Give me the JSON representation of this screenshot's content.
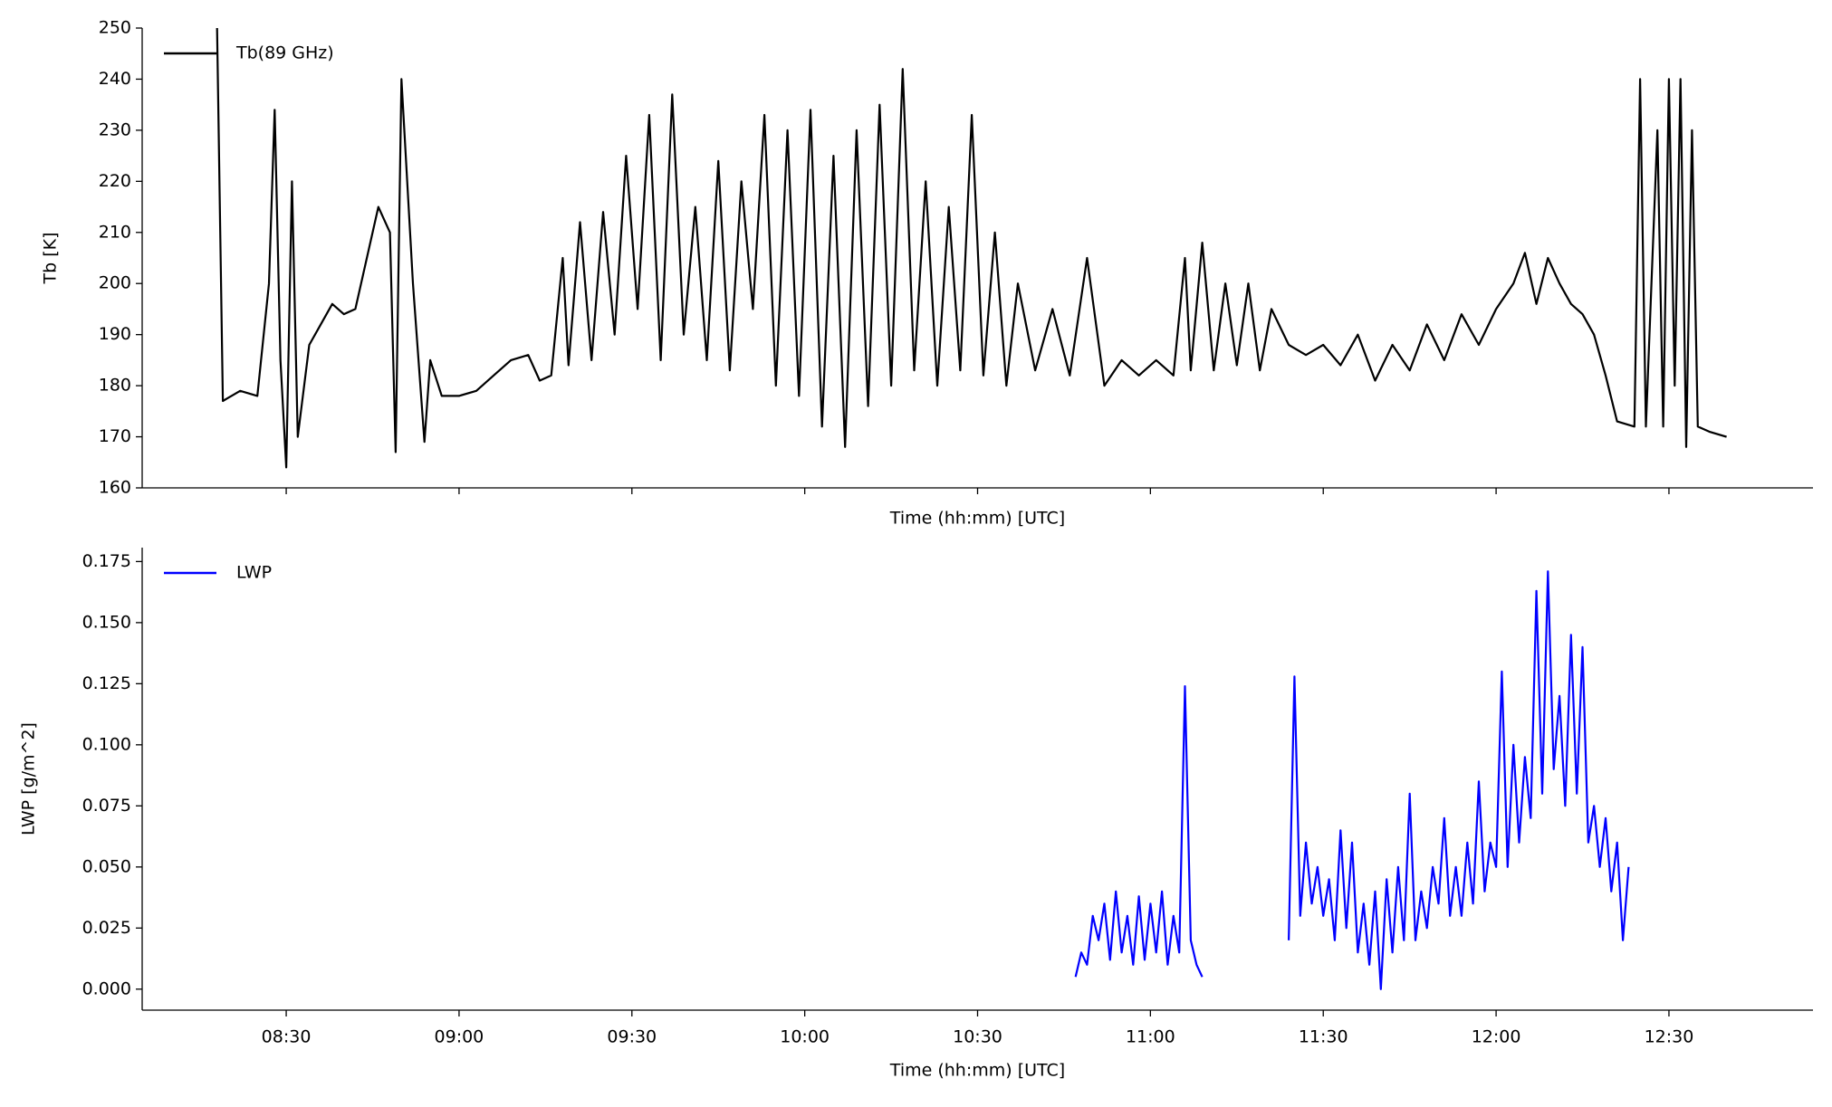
{
  "chart_data": [
    {
      "type": "line",
      "xlabel": "Time (hh:mm) [UTC]",
      "ylabel": "Tb [K]",
      "xlim": [
        "08:05",
        "12:55"
      ],
      "xticks": [
        "08:30",
        "09:00",
        "09:30",
        "10:00",
        "10:30",
        "11:00",
        "11:30",
        "12:00",
        "12:30"
      ],
      "ylim": [
        160,
        250
      ],
      "yticks": [
        160,
        170,
        180,
        190,
        200,
        210,
        220,
        230,
        240,
        250
      ],
      "legend": "upper left",
      "x": [
        "08:18",
        "08:19",
        "08:22",
        "08:25",
        "08:27",
        "08:28",
        "08:29",
        "08:30",
        "08:31",
        "08:32",
        "08:34",
        "08:36",
        "08:38",
        "08:40",
        "08:42",
        "08:44",
        "08:46",
        "08:48",
        "08:49",
        "08:50",
        "08:52",
        "08:54",
        "08:55",
        "08:57",
        "09:00",
        "09:03",
        "09:06",
        "09:09",
        "09:12",
        "09:14",
        "09:16",
        "09:18",
        "09:19",
        "09:21",
        "09:23",
        "09:25",
        "09:27",
        "09:29",
        "09:31",
        "09:33",
        "09:35",
        "09:37",
        "09:39",
        "09:41",
        "09:43",
        "09:45",
        "09:47",
        "09:49",
        "09:51",
        "09:53",
        "09:55",
        "09:57",
        "09:59",
        "10:01",
        "10:03",
        "10:05",
        "10:07",
        "10:09",
        "10:11",
        "10:13",
        "10:15",
        "10:17",
        "10:19",
        "10:21",
        "10:23",
        "10:25",
        "10:27",
        "10:29",
        "10:31",
        "10:33",
        "10:35",
        "10:37",
        "10:40",
        "10:43",
        "10:46",
        "10:49",
        "10:52",
        "10:55",
        "10:58",
        "11:01",
        "11:04",
        "11:06",
        "11:07",
        "11:09",
        "11:11",
        "11:13",
        "11:15",
        "11:17",
        "11:19",
        "11:21",
        "11:24",
        "11:27",
        "11:30",
        "11:33",
        "11:36",
        "11:39",
        "11:42",
        "11:45",
        "11:48",
        "11:51",
        "11:54",
        "11:57",
        "12:00",
        "12:03",
        "12:05",
        "12:07",
        "12:09",
        "12:11",
        "12:13",
        "12:15",
        "12:17",
        "12:19",
        "12:21",
        "12:24",
        "12:25",
        "12:26",
        "12:28",
        "12:29",
        "12:30",
        "12:31",
        "12:32",
        "12:33",
        "12:34",
        "12:35",
        "12:37",
        "12:40"
      ],
      "series": [
        {
          "name": "Tb(89 GHz)",
          "color": "#000000",
          "values": [
            250,
            177,
            179,
            178,
            200,
            234,
            185,
            164,
            220,
            170,
            188,
            192,
            196,
            194,
            195,
            205,
            215,
            210,
            167,
            240,
            200,
            169,
            185,
            178,
            178,
            179,
            182,
            185,
            186,
            181,
            182,
            205,
            184,
            212,
            185,
            214,
            190,
            225,
            195,
            233,
            185,
            237,
            190,
            215,
            185,
            224,
            183,
            220,
            195,
            233,
            180,
            230,
            178,
            234,
            172,
            225,
            168,
            230,
            176,
            235,
            180,
            242,
            183,
            220,
            180,
            215,
            183,
            233,
            182,
            210,
            180,
            200,
            183,
            195,
            182,
            205,
            180,
            185,
            182,
            185,
            182,
            205,
            183,
            208,
            183,
            200,
            184,
            200,
            183,
            195,
            188,
            186,
            188,
            184,
            190,
            181,
            188,
            183,
            192,
            185,
            194,
            188,
            195,
            200,
            206,
            196,
            205,
            200,
            196,
            194,
            190,
            182,
            173,
            172,
            240,
            172,
            230,
            172,
            240,
            180,
            240,
            168,
            230,
            172,
            171,
            170
          ]
        }
      ]
    },
    {
      "type": "line",
      "xlabel": "Time (hh:mm) [UTC]",
      "ylabel": "LWP [g/m^2]",
      "xlim": [
        "08:05",
        "12:55"
      ],
      "xticks": [
        "08:30",
        "09:00",
        "09:30",
        "10:00",
        "10:30",
        "11:00",
        "11:30",
        "12:00",
        "12:30"
      ],
      "ylim": [
        -0.0086,
        0.1807
      ],
      "yticks": [
        {
          "value": 0,
          "label": "0.000"
        },
        {
          "value": 0.025,
          "label": "0.025"
        },
        {
          "value": 0.05,
          "label": "0.050"
        },
        {
          "value": 0.075,
          "label": "0.075"
        },
        {
          "value": 0.1,
          "label": "0.100"
        },
        {
          "value": 0.125,
          "label": "0.125"
        },
        {
          "value": 0.15,
          "label": "0.150"
        },
        {
          "value": 0.175,
          "label": "0.175"
        }
      ],
      "legend": "upper left",
      "x": [
        "10:47",
        "10:48",
        "10:49",
        "10:50",
        "10:51",
        "10:52",
        "10:53",
        "10:54",
        "10:55",
        "10:56",
        "10:57",
        "10:58",
        "10:59",
        "11:00",
        "11:01",
        "11:02",
        "11:03",
        "11:04",
        "11:05",
        "11:06",
        "11:07",
        "11:08",
        "11:09",
        "11:16",
        "11:24",
        "11:25",
        "11:26",
        "11:27",
        "11:28",
        "11:29",
        "11:30",
        "11:31",
        "11:32",
        "11:33",
        "11:34",
        "11:35",
        "11:36",
        "11:37",
        "11:38",
        "11:39",
        "11:40",
        "11:41",
        "11:42",
        "11:43",
        "11:44",
        "11:45",
        "11:46",
        "11:47",
        "11:48",
        "11:49",
        "11:50",
        "11:51",
        "11:52",
        "11:53",
        "11:54",
        "11:55",
        "11:56",
        "11:57",
        "11:58",
        "11:59",
        "12:00",
        "12:01",
        "12:02",
        "12:03",
        "12:04",
        "12:05",
        "12:06",
        "12:07",
        "12:08",
        "12:09",
        "12:10",
        "12:11",
        "12:12",
        "12:13",
        "12:14",
        "12:15",
        "12:16",
        "12:17",
        "12:18",
        "12:19",
        "12:20",
        "12:21",
        "12:22",
        "12:23"
      ],
      "series": [
        {
          "name": "LWP",
          "color": "#0000ff",
          "values": [
            0.005,
            0.015,
            0.01,
            0.03,
            0.02,
            0.035,
            0.012,
            0.04,
            0.015,
            0.03,
            0.01,
            0.038,
            0.012,
            0.035,
            0.015,
            0.04,
            0.01,
            0.03,
            0.015,
            0.124,
            0.02,
            0.01,
            0.005,
            null,
            0.02,
            0.128,
            0.03,
            0.06,
            0.035,
            0.05,
            0.03,
            0.045,
            0.02,
            0.065,
            0.025,
            0.06,
            0.015,
            0.035,
            0.01,
            0.04,
            0.0,
            0.045,
            0.015,
            0.05,
            0.02,
            0.08,
            0.02,
            0.04,
            0.025,
            0.05,
            0.035,
            0.07,
            0.03,
            0.05,
            0.03,
            0.06,
            0.035,
            0.085,
            0.04,
            0.06,
            0.05,
            0.13,
            0.05,
            0.1,
            0.06,
            0.095,
            0.07,
            0.163,
            0.08,
            0.171,
            0.09,
            0.12,
            0.075,
            0.145,
            0.08,
            0.14,
            0.06,
            0.075,
            0.05,
            0.07,
            0.04,
            0.06,
            0.02,
            0.05
          ]
        }
      ]
    }
  ]
}
